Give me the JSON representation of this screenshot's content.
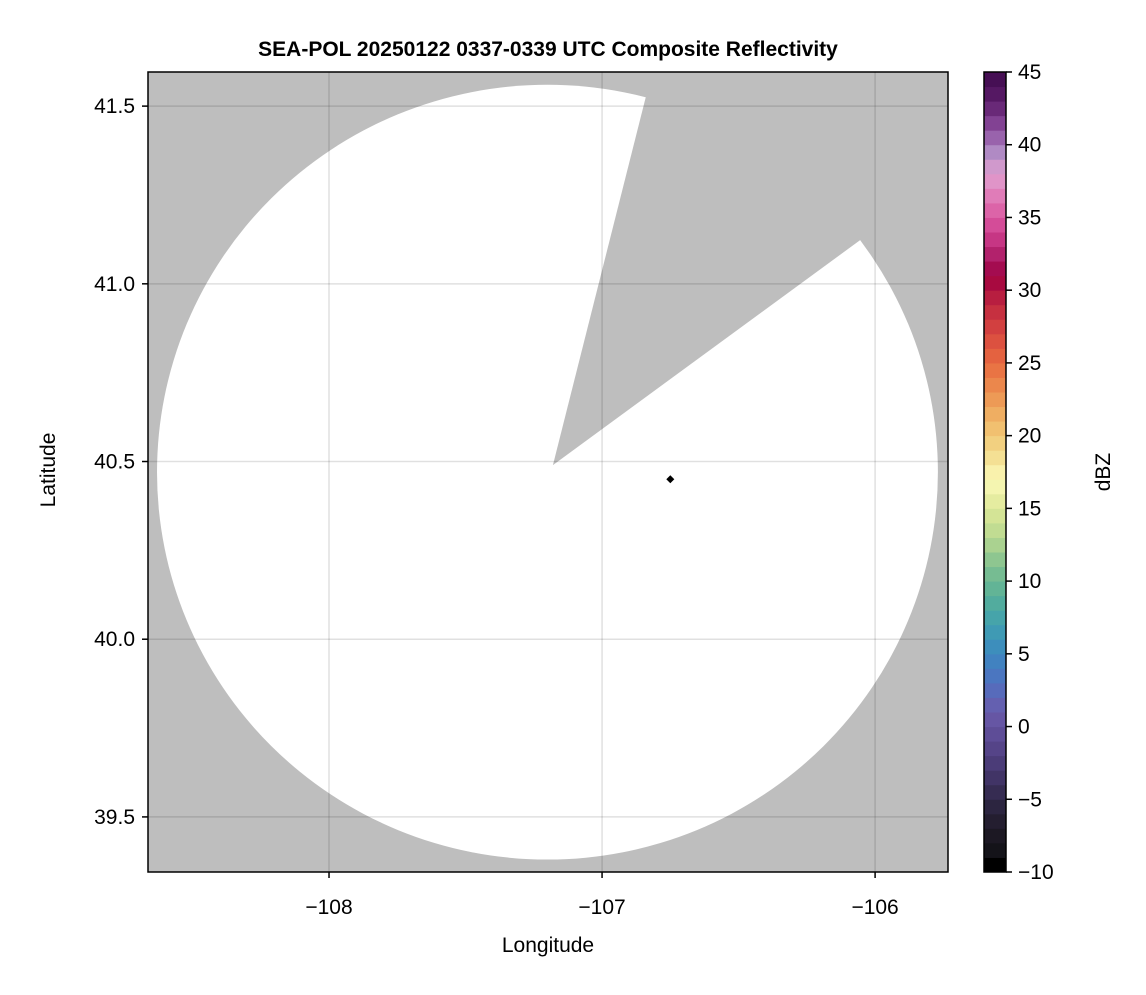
{
  "chart_data": {
    "type": "heatmap",
    "title": "SEA-POL 20250122 0337-0339 UTC Composite Reflectivity",
    "xlabel": "Longitude",
    "ylabel": "Latitude",
    "xlim": [
      -108.663,
      -105.733
    ],
    "ylim": [
      39.345,
      41.596
    ],
    "xticks": [
      -108,
      -107,
      -106
    ],
    "xtick_labels": [
      "−108",
      "−107",
      "−106"
    ],
    "yticks": [
      39.5,
      40.0,
      40.5,
      41.0,
      41.5
    ],
    "ytick_labels": [
      "39.5",
      "40.0",
      "40.5",
      "41.0",
      "41.5"
    ],
    "grid": true,
    "background_color": "#bebebe",
    "coverage_color": "#ffffff",
    "coverage": {
      "center": [
        -107.2,
        40.47
      ],
      "radius_lon": 1.43,
      "radius_lat": 1.09,
      "blocked_sector": [
        [
          -107.18,
          40.49
        ],
        [
          -106.84,
          41.525
        ],
        [
          -106.06,
          41.12
        ]
      ]
    },
    "marker": {
      "lon": -106.75,
      "lat": 40.45,
      "shape": "diamond",
      "color": "#000000"
    },
    "colorbar": {
      "label": "dBZ",
      "range": [
        -10,
        45
      ],
      "ticks": [
        -10,
        -5,
        0,
        5,
        10,
        15,
        20,
        25,
        30,
        35,
        40,
        45
      ],
      "tick_labels": [
        "−10",
        "−5",
        "0",
        "5",
        "10",
        "15",
        "20",
        "25",
        "30",
        "35",
        "40",
        "45"
      ],
      "step": 1,
      "anchors": [
        [
          -10,
          "#000000"
        ],
        [
          -9,
          "#101014"
        ],
        [
          -7,
          "#201a28"
        ],
        [
          -5,
          "#302848"
        ],
        [
          -3,
          "#463870"
        ],
        [
          -1,
          "#5a4890"
        ],
        [
          1,
          "#6a5aaa"
        ],
        [
          3,
          "#5070c0"
        ],
        [
          5,
          "#3c88c0"
        ],
        [
          7,
          "#40a0b0"
        ],
        [
          9,
          "#58b098"
        ],
        [
          11,
          "#80c090"
        ],
        [
          13,
          "#b8d890"
        ],
        [
          15,
          "#dde898"
        ],
        [
          17,
          "#fbf9b8"
        ],
        [
          19,
          "#f2d888"
        ],
        [
          21,
          "#f0b868"
        ],
        [
          23,
          "#ec9050"
        ],
        [
          25,
          "#e86a40"
        ],
        [
          27,
          "#d84840"
        ],
        [
          29,
          "#c02840"
        ],
        [
          31,
          "#a00040"
        ],
        [
          32,
          "#a81860"
        ],
        [
          34,
          "#d04090"
        ],
        [
          36,
          "#e070b0"
        ],
        [
          38,
          "#e0a0d0"
        ],
        [
          39.5,
          "#b08ac4"
        ],
        [
          41,
          "#8e4fa0"
        ],
        [
          43,
          "#5c1c6a"
        ],
        [
          45,
          "#3f0b4c"
        ]
      ]
    }
  }
}
